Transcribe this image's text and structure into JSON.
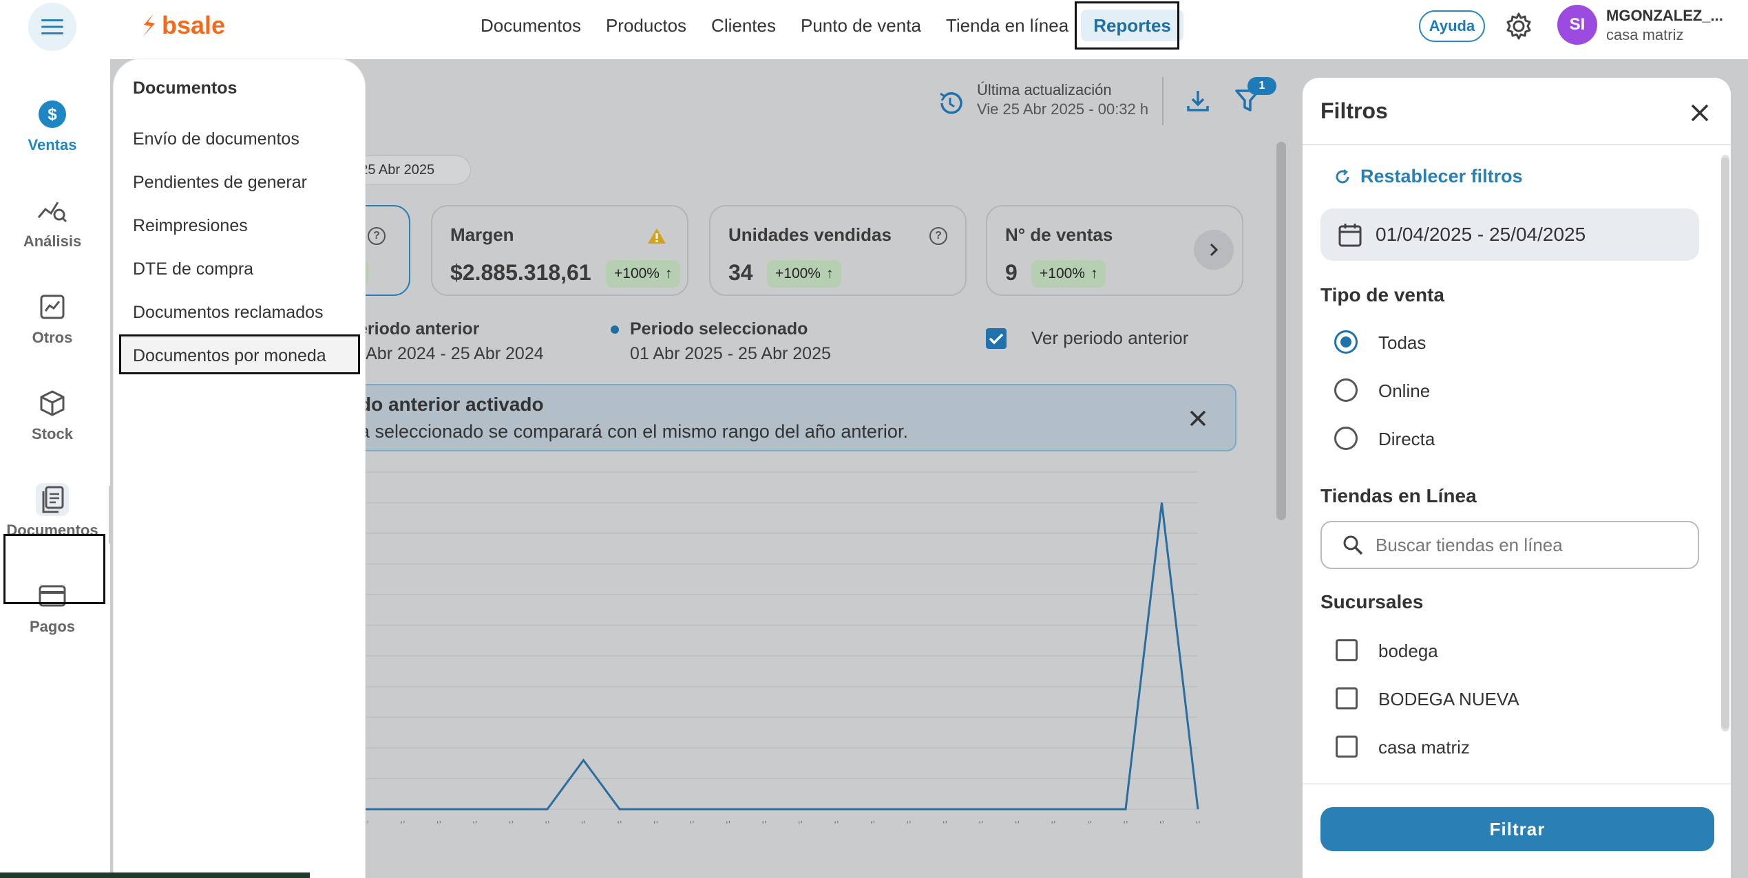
{
  "topbar": {
    "brand": "bsale",
    "nav": [
      "Documentos",
      "Productos",
      "Clientes",
      "Punto de venta",
      "Tienda en línea",
      "Reportes"
    ],
    "active_nav": "Reportes",
    "help_label": "Ayuda",
    "avatar_initials": "SI",
    "user_name": "MGONZALEZ_...",
    "user_branch": "casa matriz"
  },
  "rail": {
    "items": [
      {
        "label": "Ventas",
        "icon": "dollar-icon"
      },
      {
        "label": "Análisis",
        "icon": "analytics-icon"
      },
      {
        "label": "Otros",
        "icon": "trend-chart-icon"
      },
      {
        "label": "Stock",
        "icon": "box-icon"
      },
      {
        "label": "Documentos",
        "icon": "document-icon"
      },
      {
        "label": "Pagos",
        "icon": "card-icon"
      }
    ]
  },
  "dropdown": {
    "title": "Documentos",
    "items": [
      "Envío de documentos",
      "Pendientes de generar",
      "Reimpresiones",
      "DTE de compra",
      "Documentos reclamados",
      "Documentos por moneda"
    ]
  },
  "header": {
    "update_title": "Última actualización",
    "update_date": "Vie 25 Abr 2025 - 00:32 h",
    "filter_count": "1"
  },
  "date_chip": "- 25 Abr 2025",
  "kpis": [
    {
      "title": "",
      "value": "",
      "badge": "0%"
    },
    {
      "title": "Margen",
      "value": "$2.885.318,61",
      "badge": "+100%"
    },
    {
      "title": "Unidades vendidas",
      "value": "34",
      "badge": "+100%"
    },
    {
      "title": "N° de ventas",
      "value": "9",
      "badge": "+100%"
    }
  ],
  "periods": {
    "prev_title": "eriodo anterior",
    "prev_range": "l Abr 2024 - 25 Abr 2024",
    "sel_title": "Periodo seleccionado",
    "sel_range": "01 Abr 2025 - 25 Abr 2025",
    "show_prev_label": "Ver periodo anterior"
  },
  "alert": {
    "title": "do anterior activado",
    "text": "a seleccionado se comparará con el mismo rango del año anterior."
  },
  "chart_data": {
    "type": "line",
    "title": "",
    "xlabel": "",
    "ylabel": "",
    "x": [
      "1",
      "2",
      "3",
      "4",
      "5",
      "6",
      "7",
      "8",
      "9",
      "10",
      "11",
      "12",
      "13",
      "14",
      "15",
      "16",
      "17",
      "18",
      "19",
      "20",
      "21",
      "22",
      "23",
      "24",
      "25"
    ],
    "series": [
      {
        "values": [
          0,
          0,
          0,
          0,
          0,
          0,
          0,
          8,
          0,
          0,
          0,
          0,
          0,
          0,
          0,
          0,
          0,
          0,
          0,
          0,
          0,
          0,
          0,
          50,
          0
        ]
      }
    ],
    "ylim": [
      0,
      55
    ],
    "grid": true
  },
  "filters": {
    "title": "Filtros",
    "reset_label": "Restablecer filtros",
    "date_range": "01/04/2025 - 25/04/2025",
    "sale_type_title": "Tipo de venta",
    "sale_types": [
      "Todas",
      "Online",
      "Directa"
    ],
    "selected_sale_type": "Todas",
    "online_stores_title": "Tiendas en Línea",
    "online_search_placeholder": "Buscar tiendas en línea",
    "branches_title": "Sucursales",
    "branches": [
      "bodega",
      "BODEGA NUEVA",
      "casa matriz"
    ],
    "apply_label": "Filtrar"
  },
  "colors": {
    "brand": "#f26a1b",
    "accent": "#2a7fb4",
    "avatar": "#9b4be0",
    "badge_green": "#b6cfb2"
  }
}
